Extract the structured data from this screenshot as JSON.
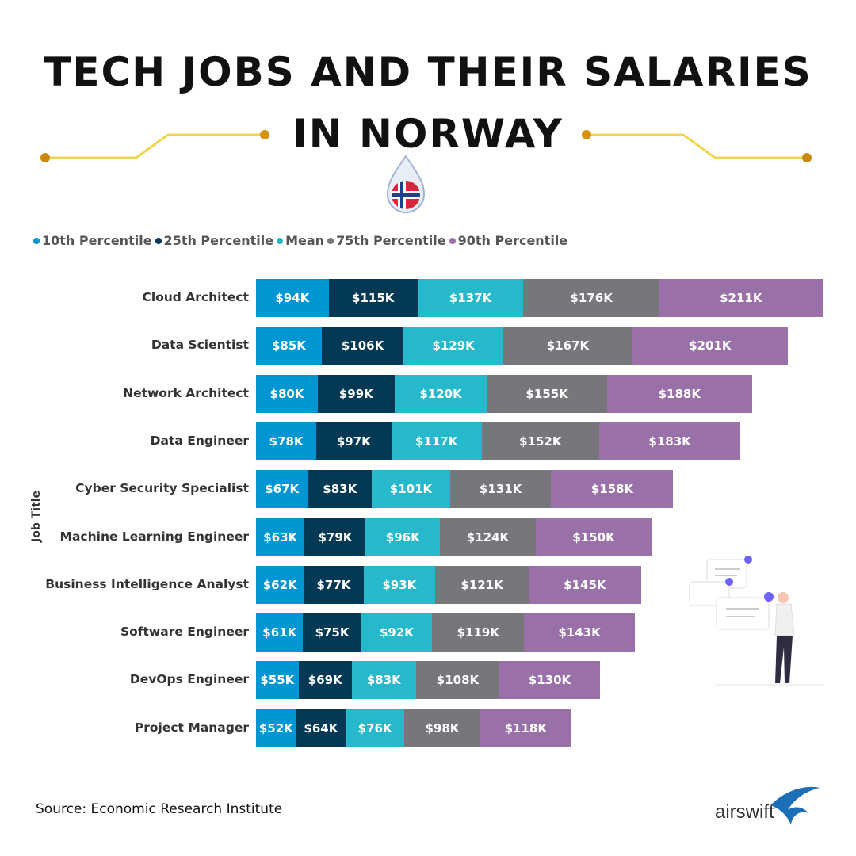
{
  "title": {
    "line1": "TECH JOBS AND THEIR SALARIES",
    "line2": "IN NORWAY"
  },
  "source": "Source: Economic Research Institute",
  "logo": "airswift",
  "colors": {
    "p10": "#0096d3",
    "p25": "#033955",
    "mean": "#26b8cb",
    "p75": "#77777b",
    "p90": "#9970a7",
    "accent_gold": "#d49410"
  },
  "chart_data": {
    "type": "bar",
    "orientation": "horizontal",
    "stacked": true,
    "ylabel": "Job Title",
    "xlabel": "",
    "legend_position": "top-left",
    "grid": false,
    "categories": [
      "Cloud Architect",
      "Data Scientist",
      "Network Architect",
      "Data Engineer",
      "Cyber Security Specialist",
      "Machine Learning Engineer",
      "Business Intelligence Analyst",
      "Software Engineer",
      "DevOps Engineer",
      "Project Manager"
    ],
    "series": [
      {
        "name": "10th Percentile",
        "color": "#0096d3",
        "values": [
          94,
          85,
          80,
          78,
          67,
          63,
          62,
          61,
          55,
          52
        ],
        "labels": [
          "$94K",
          "$85K",
          "$80K",
          "$78K",
          "$67K",
          "$63K",
          "$62K",
          "$61K",
          "$55K",
          "$52K"
        ]
      },
      {
        "name": "25th Percentile",
        "color": "#033955",
        "values": [
          115,
          106,
          99,
          97,
          83,
          79,
          77,
          75,
          69,
          64
        ],
        "labels": [
          "$115K",
          "$106K",
          "$99K",
          "$97K",
          "$83K",
          "$79K",
          "$77K",
          "$75K",
          "$69K",
          "$64K"
        ]
      },
      {
        "name": "Mean",
        "color": "#26b8cb",
        "values": [
          137,
          129,
          120,
          117,
          101,
          96,
          93,
          92,
          83,
          76
        ],
        "labels": [
          "$137K",
          "$129K",
          "$120K",
          "$117K",
          "$101K",
          "$96K",
          "$93K",
          "$92K",
          "$83K",
          "$76K"
        ]
      },
      {
        "name": "75th Percentile",
        "color": "#77777b",
        "values": [
          176,
          167,
          155,
          152,
          131,
          124,
          121,
          119,
          108,
          98
        ],
        "labels": [
          "$176K",
          "$167K",
          "$155K",
          "$152K",
          "$131K",
          "$124K",
          "$121K",
          "$119K",
          "$108K",
          "$98K"
        ]
      },
      {
        "name": "90th Percentile",
        "color": "#9970a7",
        "values": [
          211,
          201,
          188,
          183,
          158,
          150,
          145,
          143,
          130,
          118
        ],
        "labels": [
          "$211K",
          "$201K",
          "$188K",
          "$183K",
          "$158K",
          "$150K",
          "$145K",
          "$143K",
          "$130K",
          "$118K"
        ]
      }
    ]
  }
}
